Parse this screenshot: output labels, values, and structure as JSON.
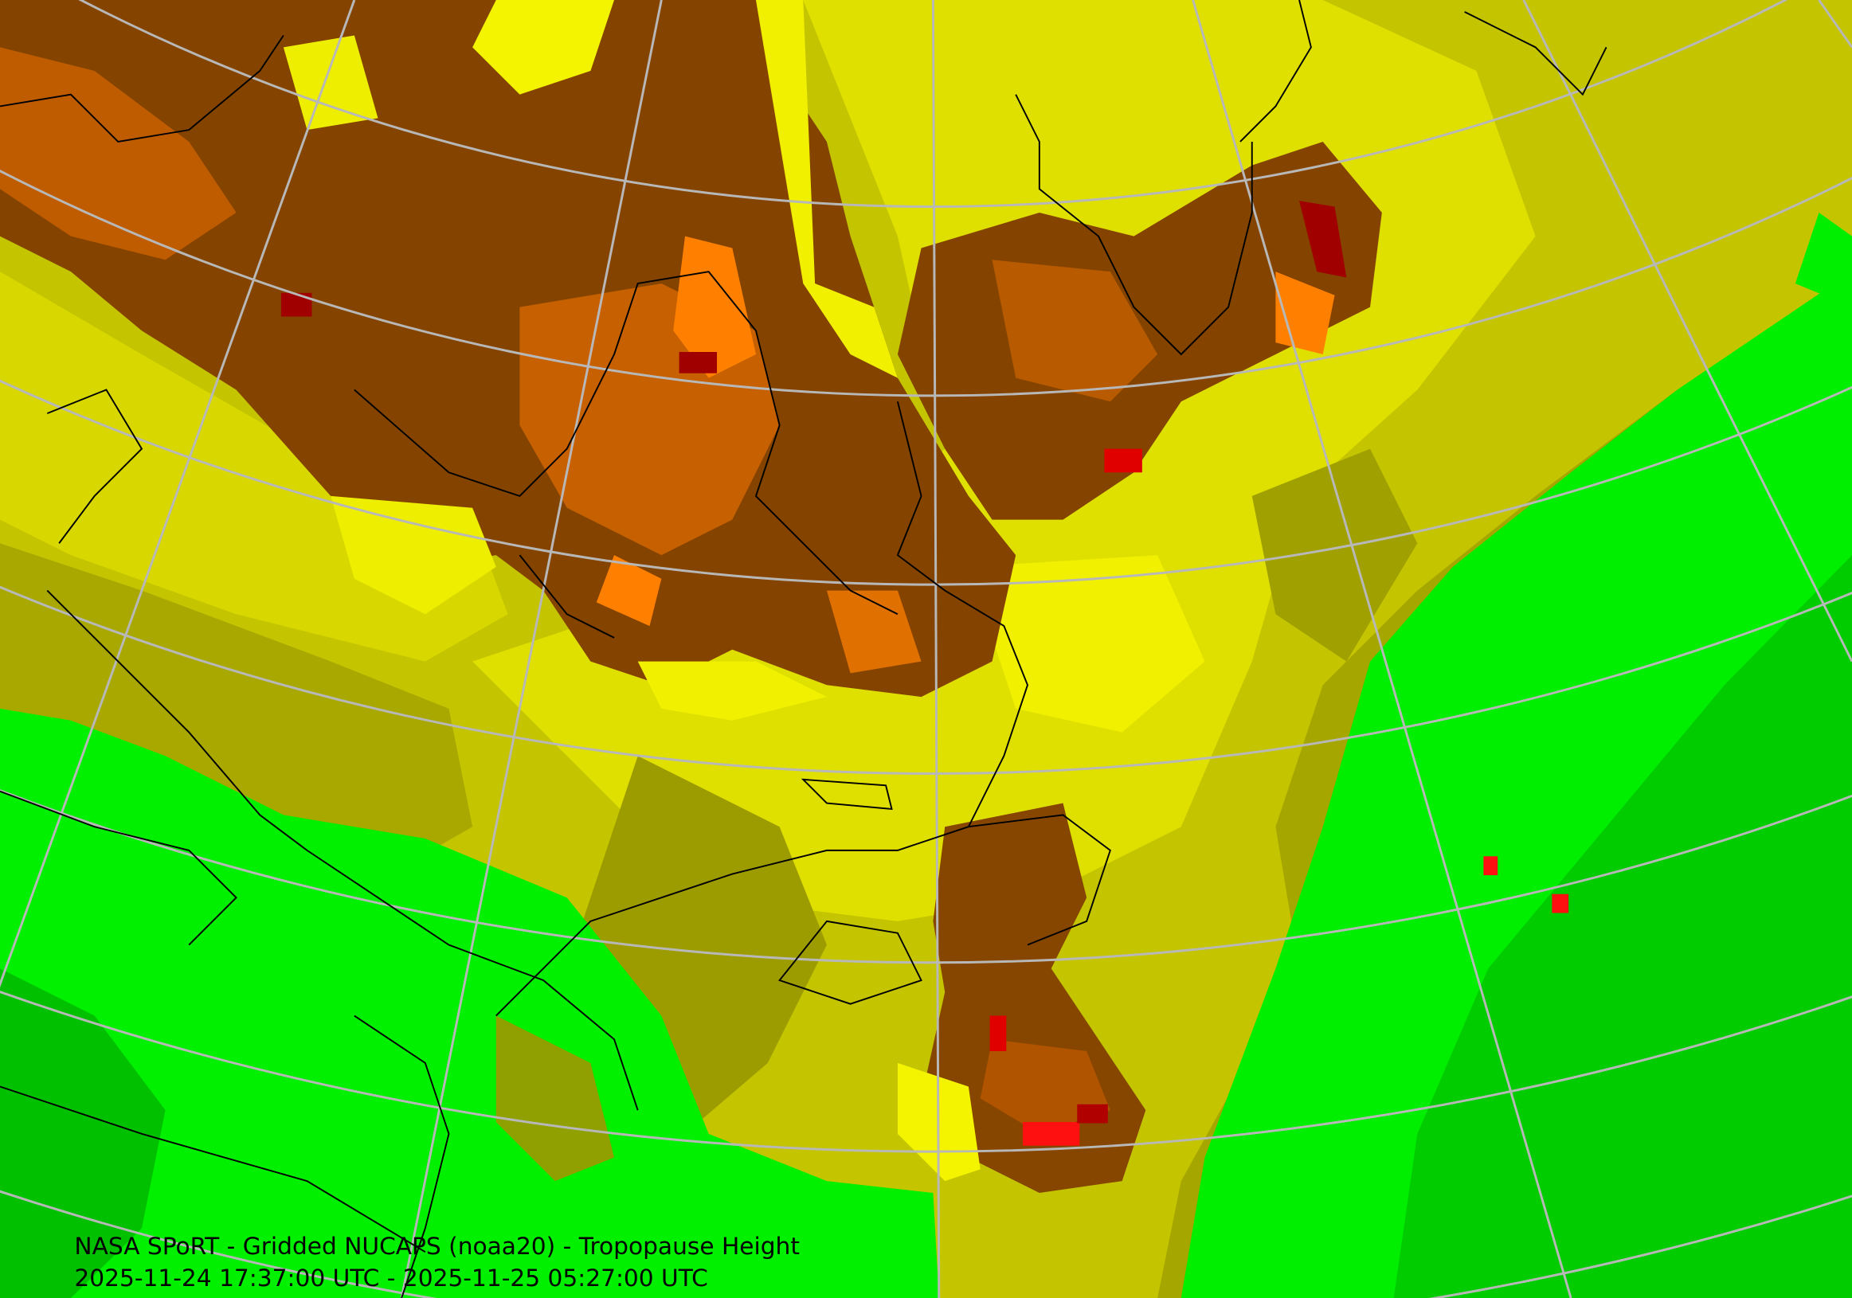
{
  "caption": {
    "title": "NASA SPoRT - Gridded NUCAPS (noaa20) - Tropopause Height",
    "time_range": "2025-11-24 17:37:00 UTC - 2025-11-25 05:27:00 UTC"
  }
}
